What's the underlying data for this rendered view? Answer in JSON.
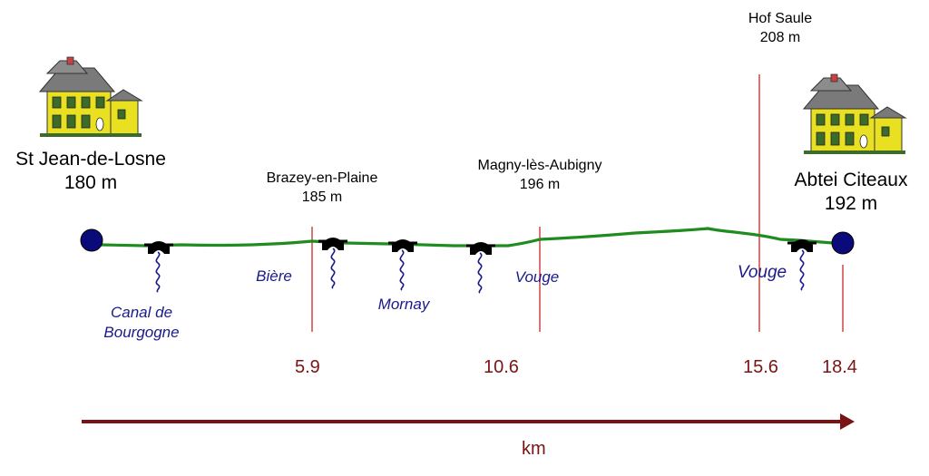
{
  "towns": [
    {
      "name": "St Jean-de-Losne",
      "elev": "180 m"
    },
    {
      "name": "Brazey-en-Plaine",
      "elev": "185 m"
    },
    {
      "name": "Magny-lès-Aubigny",
      "elev": "196 m"
    },
    {
      "name": "Hof Saule",
      "elev": "208 m"
    },
    {
      "name": "Abtei Citeaux",
      "elev": "192 m"
    }
  ],
  "rivers": [
    {
      "line1": "Canal de",
      "line2": "Bourgogne"
    },
    {
      "line1": "Bière"
    },
    {
      "line1": "Mornay"
    },
    {
      "line1": "Vouge"
    },
    {
      "line1": "Vouge"
    }
  ],
  "km_marks": [
    "5.9",
    "10.6",
    "15.6",
    "18.4"
  ],
  "axis_unit": "km",
  "colors": {
    "route": "#1e8c1e",
    "marker": "#c82828",
    "axis": "#7a1414",
    "river": "#1a1a8c",
    "endpoint": "#0a0a7a"
  },
  "icons": [
    "house-icon",
    "bridge-icon",
    "river-squiggle-icon",
    "endpoint-circle-icon",
    "arrow-right-icon"
  ]
}
